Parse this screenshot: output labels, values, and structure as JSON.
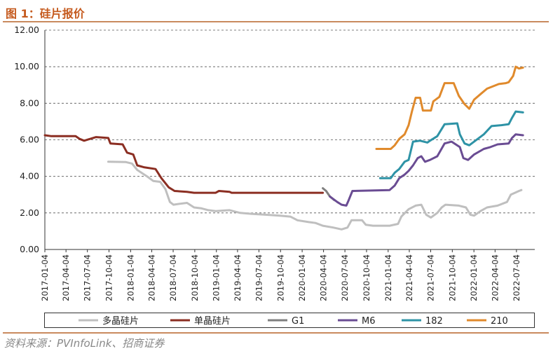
{
  "figure_title": "图 1：硅片报价",
  "source_text": "资料来源：PVInfoLink、招商证券",
  "chart_data": {
    "type": "line",
    "title": "",
    "xlabel": "",
    "ylabel": "",
    "ylim": [
      0,
      12
    ],
    "yticks": [
      "0.00",
      "2.00",
      "4.00",
      "6.00",
      "8.00",
      "10.00",
      "12.00"
    ],
    "xlim": [
      "2017-01-04",
      "2022-09-20"
    ],
    "xticks": [
      "2017-01-04",
      "2017-04-04",
      "2017-07-04",
      "2017-10-04",
      "2018-01-04",
      "2018-04-04",
      "2018-07-04",
      "2018-10-04",
      "2019-01-04",
      "2019-04-04",
      "2019-07-04",
      "2019-10-04",
      "2020-01-04",
      "2020-04-04",
      "2020-07-04",
      "2020-10-04",
      "2021-01-04",
      "2021-04-04",
      "2021-07-04",
      "2021-10-04",
      "2022-01-04",
      "2022-04-04",
      "2022-07-04"
    ],
    "grid": "horizontal-dashed",
    "legend_position": "bottom",
    "series": [
      {
        "name": "多晶硅片",
        "color": "#bfbfbf",
        "points": [
          [
            "2017-10-01",
            4.8
          ],
          [
            "2017-12-15",
            4.78
          ],
          [
            "2018-01-10",
            4.7
          ],
          [
            "2018-02-01",
            4.35
          ],
          [
            "2018-03-15",
            4.0
          ],
          [
            "2018-04-10",
            3.75
          ],
          [
            "2018-05-10",
            3.7
          ],
          [
            "2018-06-01",
            3.3
          ],
          [
            "2018-06-20",
            2.6
          ],
          [
            "2018-07-05",
            2.45
          ],
          [
            "2018-08-01",
            2.5
          ],
          [
            "2018-09-01",
            2.55
          ],
          [
            "2018-10-01",
            2.3
          ],
          [
            "2018-11-01",
            2.25
          ],
          [
            "2018-12-01",
            2.15
          ],
          [
            "2019-01-01",
            2.1
          ],
          [
            "2019-03-01",
            2.15
          ],
          [
            "2019-04-15",
            2.0
          ],
          [
            "2019-06-01",
            1.95
          ],
          [
            "2019-08-01",
            1.9
          ],
          [
            "2019-10-01",
            1.85
          ],
          [
            "2019-11-15",
            1.8
          ],
          [
            "2019-12-15",
            1.6
          ],
          [
            "2020-02-01",
            1.5
          ],
          [
            "2020-03-01",
            1.45
          ],
          [
            "2020-04-01",
            1.3
          ],
          [
            "2020-05-15",
            1.2
          ],
          [
            "2020-06-20",
            1.1
          ],
          [
            "2020-07-15",
            1.2
          ],
          [
            "2020-08-01",
            1.6
          ],
          [
            "2020-09-15",
            1.6
          ],
          [
            "2020-10-01",
            1.35
          ],
          [
            "2020-11-01",
            1.3
          ],
          [
            "2021-01-10",
            1.3
          ],
          [
            "2021-02-15",
            1.4
          ],
          [
            "2021-03-01",
            1.8
          ],
          [
            "2021-04-01",
            2.2
          ],
          [
            "2021-05-01",
            2.4
          ],
          [
            "2021-05-25",
            2.45
          ],
          [
            "2021-06-15",
            1.9
          ],
          [
            "2021-07-05",
            1.75
          ],
          [
            "2021-08-01",
            2.0
          ],
          [
            "2021-08-20",
            2.3
          ],
          [
            "2021-09-05",
            2.45
          ],
          [
            "2021-11-01",
            2.4
          ],
          [
            "2021-12-01",
            2.3
          ],
          [
            "2021-12-20",
            1.9
          ],
          [
            "2022-01-05",
            1.85
          ],
          [
            "2022-02-01",
            2.1
          ],
          [
            "2022-03-01",
            2.3
          ],
          [
            "2022-04-15",
            2.4
          ],
          [
            "2022-05-25",
            2.6
          ],
          [
            "2022-06-10",
            3.0
          ],
          [
            "2022-07-15",
            3.2
          ],
          [
            "2022-07-25",
            3.25
          ]
        ]
      },
      {
        "name": "单晶硅片",
        "color": "#8b2e22",
        "points": [
          [
            "2017-01-04",
            6.25
          ],
          [
            "2017-02-01",
            6.2
          ],
          [
            "2017-05-15",
            6.2
          ],
          [
            "2017-06-01",
            6.05
          ],
          [
            "2017-06-20",
            5.95
          ],
          [
            "2017-08-10",
            6.15
          ],
          [
            "2017-10-01",
            6.1
          ],
          [
            "2017-10-10",
            5.8
          ],
          [
            "2017-12-01",
            5.75
          ],
          [
            "2017-12-20",
            5.3
          ],
          [
            "2018-01-15",
            5.2
          ],
          [
            "2018-02-01",
            4.6
          ],
          [
            "2018-03-01",
            4.5
          ],
          [
            "2018-04-20",
            4.4
          ],
          [
            "2018-05-15",
            3.9
          ],
          [
            "2018-06-15",
            3.4
          ],
          [
            "2018-07-10",
            3.2
          ],
          [
            "2018-09-01",
            3.15
          ],
          [
            "2018-10-01",
            3.1
          ],
          [
            "2019-01-01",
            3.1
          ],
          [
            "2019-01-15",
            3.2
          ],
          [
            "2019-03-01",
            3.15
          ],
          [
            "2019-03-10",
            3.1
          ],
          [
            "2020-04-01",
            3.1
          ]
        ]
      },
      {
        "name": "G1",
        "color": "#7f7f7f",
        "points": [
          [
            "2020-04-01",
            3.35
          ],
          [
            "2020-04-15",
            3.2
          ],
          [
            "2020-05-01",
            2.9
          ],
          [
            "2020-05-20",
            2.7
          ]
        ]
      },
      {
        "name": "M6",
        "color": "#6a4c93",
        "points": [
          [
            "2020-05-01",
            2.9
          ],
          [
            "2020-06-01",
            2.6
          ],
          [
            "2020-06-20",
            2.45
          ],
          [
            "2020-07-10",
            2.4
          ],
          [
            "2020-07-20",
            2.7
          ],
          [
            "2020-08-05",
            3.2
          ],
          [
            "2021-01-10",
            3.25
          ],
          [
            "2021-02-01",
            3.5
          ],
          [
            "2021-02-20",
            3.9
          ],
          [
            "2021-03-15",
            4.1
          ],
          [
            "2021-04-01",
            4.3
          ],
          [
            "2021-04-20",
            4.6
          ],
          [
            "2021-05-10",
            5.0
          ],
          [
            "2021-05-25",
            5.1
          ],
          [
            "2021-06-10",
            4.8
          ],
          [
            "2021-07-01",
            4.9
          ],
          [
            "2021-08-01",
            5.1
          ],
          [
            "2021-09-01",
            5.8
          ],
          [
            "2021-10-01",
            5.9
          ],
          [
            "2021-11-05",
            5.6
          ],
          [
            "2021-11-20",
            5.0
          ],
          [
            "2021-12-10",
            4.9
          ],
          [
            "2022-01-05",
            5.2
          ],
          [
            "2022-02-15",
            5.5
          ],
          [
            "2022-03-15",
            5.6
          ],
          [
            "2022-04-15",
            5.75
          ],
          [
            "2022-06-01",
            5.8
          ],
          [
            "2022-06-15",
            6.1
          ],
          [
            "2022-07-01",
            6.3
          ],
          [
            "2022-08-01",
            6.25
          ]
        ]
      },
      {
        "name": "182",
        "color": "#2e93a6",
        "points": [
          [
            "2020-12-01",
            3.9
          ],
          [
            "2021-01-15",
            3.9
          ],
          [
            "2021-02-01",
            4.2
          ],
          [
            "2021-02-20",
            4.4
          ],
          [
            "2021-03-15",
            4.8
          ],
          [
            "2021-04-01",
            4.9
          ],
          [
            "2021-04-20",
            5.9
          ],
          [
            "2021-05-20",
            5.95
          ],
          [
            "2021-06-20",
            5.85
          ],
          [
            "2021-07-01",
            5.95
          ],
          [
            "2021-08-01",
            6.2
          ],
          [
            "2021-09-01",
            6.85
          ],
          [
            "2021-10-25",
            6.9
          ],
          [
            "2021-11-05",
            6.3
          ],
          [
            "2021-11-25",
            5.8
          ],
          [
            "2021-12-15",
            5.7
          ],
          [
            "2022-01-05",
            5.9
          ],
          [
            "2022-02-15",
            6.3
          ],
          [
            "2022-03-20",
            6.75
          ],
          [
            "2022-05-01",
            6.8
          ],
          [
            "2022-06-01",
            6.85
          ],
          [
            "2022-06-15",
            7.2
          ],
          [
            "2022-07-01",
            7.55
          ],
          [
            "2022-08-01",
            7.5
          ]
        ]
      },
      {
        "name": "210",
        "color": "#e08a2c",
        "points": [
          [
            "2020-11-15",
            5.5
          ],
          [
            "2021-01-15",
            5.5
          ],
          [
            "2021-02-01",
            5.7
          ],
          [
            "2021-02-20",
            6.05
          ],
          [
            "2021-03-15",
            6.3
          ],
          [
            "2021-04-01",
            6.8
          ],
          [
            "2021-04-15",
            7.55
          ],
          [
            "2021-05-01",
            8.3
          ],
          [
            "2021-05-20",
            8.3
          ],
          [
            "2021-06-01",
            7.6
          ],
          [
            "2021-07-05",
            7.6
          ],
          [
            "2021-07-15",
            8.1
          ],
          [
            "2021-08-10",
            8.35
          ],
          [
            "2021-09-01",
            9.1
          ],
          [
            "2021-10-10",
            9.1
          ],
          [
            "2021-11-01",
            8.4
          ],
          [
            "2021-11-25",
            7.95
          ],
          [
            "2021-12-15",
            7.7
          ],
          [
            "2022-01-05",
            8.2
          ],
          [
            "2022-02-01",
            8.5
          ],
          [
            "2022-03-01",
            8.8
          ],
          [
            "2022-04-20",
            9.05
          ],
          [
            "2022-05-20",
            9.1
          ],
          [
            "2022-06-01",
            9.15
          ],
          [
            "2022-06-20",
            9.5
          ],
          [
            "2022-07-01",
            10.0
          ],
          [
            "2022-07-15",
            9.9
          ],
          [
            "2022-08-01",
            9.95
          ]
        ]
      }
    ]
  }
}
